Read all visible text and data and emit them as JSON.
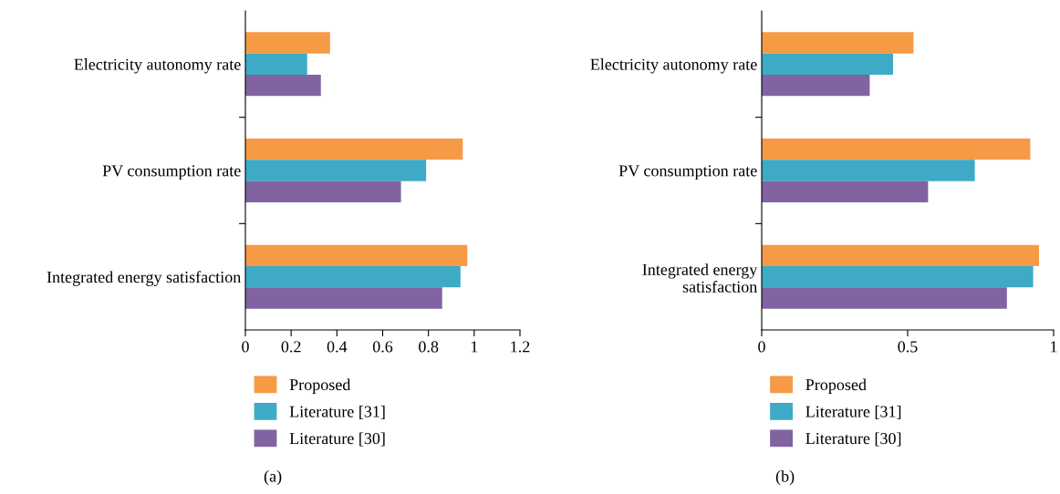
{
  "chart_data": [
    {
      "type": "bar",
      "orientation": "horizontal",
      "categories": [
        "Electricity autonomy rate",
        "PV consumption rate",
        "Integrated energy satisfaction"
      ],
      "series": [
        {
          "name": "Proposed",
          "color": "#f79a45",
          "values": [
            0.37,
            0.95,
            0.97
          ]
        },
        {
          "name": "Literature [31]",
          "color": "#3eaac6",
          "values": [
            0.27,
            0.79,
            0.94
          ]
        },
        {
          "name": "Literature [30]",
          "color": "#8064a2",
          "values": [
            0.33,
            0.68,
            0.86
          ]
        }
      ],
      "xlim": [
        0,
        1.2
      ],
      "xticks": [
        0,
        0.2,
        0.4,
        0.6,
        0.8,
        1,
        1.2
      ],
      "grid": false,
      "legend": "bottom",
      "annotations": [
        "(a)"
      ]
    },
    {
      "type": "bar",
      "orientation": "horizontal",
      "categories": [
        "Electricity autonomy rate",
        "PV consumption rate",
        "Integrated energy\nsatisfaction"
      ],
      "series": [
        {
          "name": "Proposed",
          "color": "#f79a45",
          "values": [
            0.52,
            0.92,
            0.95
          ]
        },
        {
          "name": "Literature [31]",
          "color": "#3eaac6",
          "values": [
            0.45,
            0.73,
            0.93
          ]
        },
        {
          "name": "Literature [30]",
          "color": "#8064a2",
          "values": [
            0.37,
            0.57,
            0.84
          ]
        }
      ],
      "xlim": [
        0,
        1
      ],
      "xticks": [
        0,
        0.5,
        1
      ],
      "grid": false,
      "legend": "bottom",
      "annotations": [
        "(b)"
      ]
    }
  ]
}
